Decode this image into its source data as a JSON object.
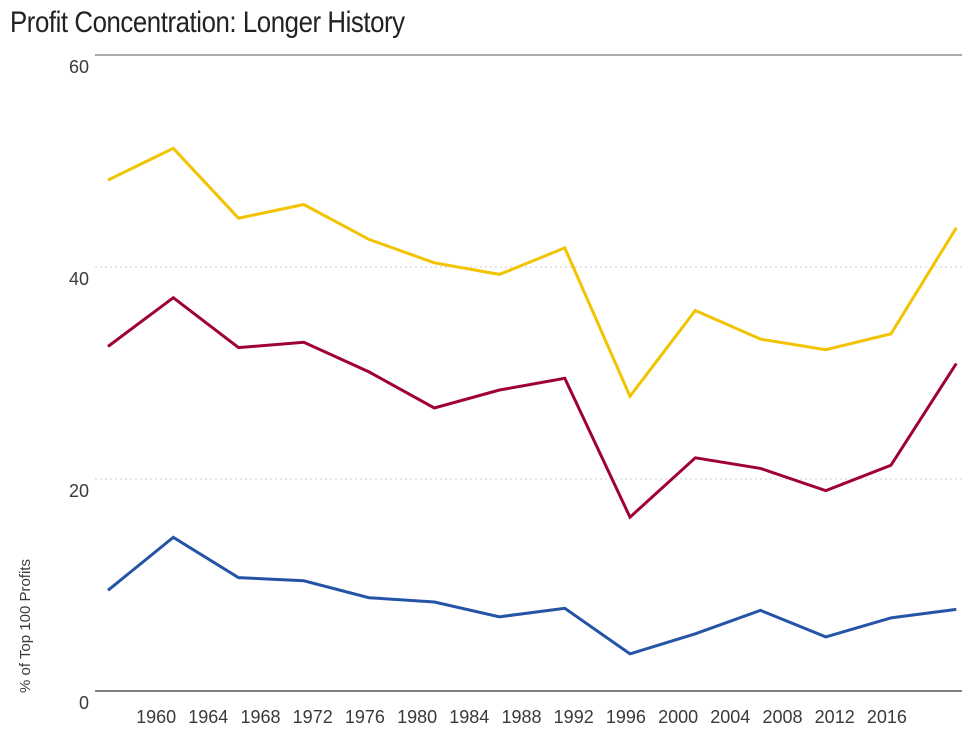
{
  "chart_data": {
    "type": "line",
    "title": "Profit Concentration: Longer History",
    "ylabel": "% of Top 100 Profits",
    "xlabel": "",
    "ylim": [
      0,
      60
    ],
    "yticks": [
      0,
      20,
      40,
      60
    ],
    "xticks": [
      "1960",
      "1964",
      "1968",
      "1972",
      "1976",
      "1980",
      "1984",
      "1988",
      "1992",
      "1996",
      "2000",
      "2004",
      "2008",
      "2012",
      "2016"
    ],
    "grid": "horizontal dotted",
    "legend": "none",
    "x": [
      1958,
      1963,
      1968,
      1973,
      1978,
      1983,
      1988,
      1993,
      1998,
      2003,
      2008,
      2013,
      2018,
      2023
    ],
    "series": [
      {
        "color": "#f2c300",
        "values": [
          48.2,
          51.2,
          44.6,
          45.9,
          42.6,
          40.4,
          39.3,
          41.8,
          27.8,
          35.9,
          33.2,
          32.2,
          33.7,
          43.7
        ]
      },
      {
        "color": "#a0003a",
        "values": [
          32.5,
          37.1,
          32.4,
          32.9,
          30.1,
          26.7,
          28.4,
          29.5,
          16.4,
          22.0,
          21.0,
          18.9,
          21.3,
          30.9
        ]
      },
      {
        "color": "#2554a6",
        "values": [
          9.5,
          14.5,
          10.7,
          10.4,
          8.8,
          8.4,
          7.0,
          7.8,
          3.5,
          5.4,
          7.6,
          5.1,
          6.9,
          7.7
        ]
      }
    ]
  }
}
